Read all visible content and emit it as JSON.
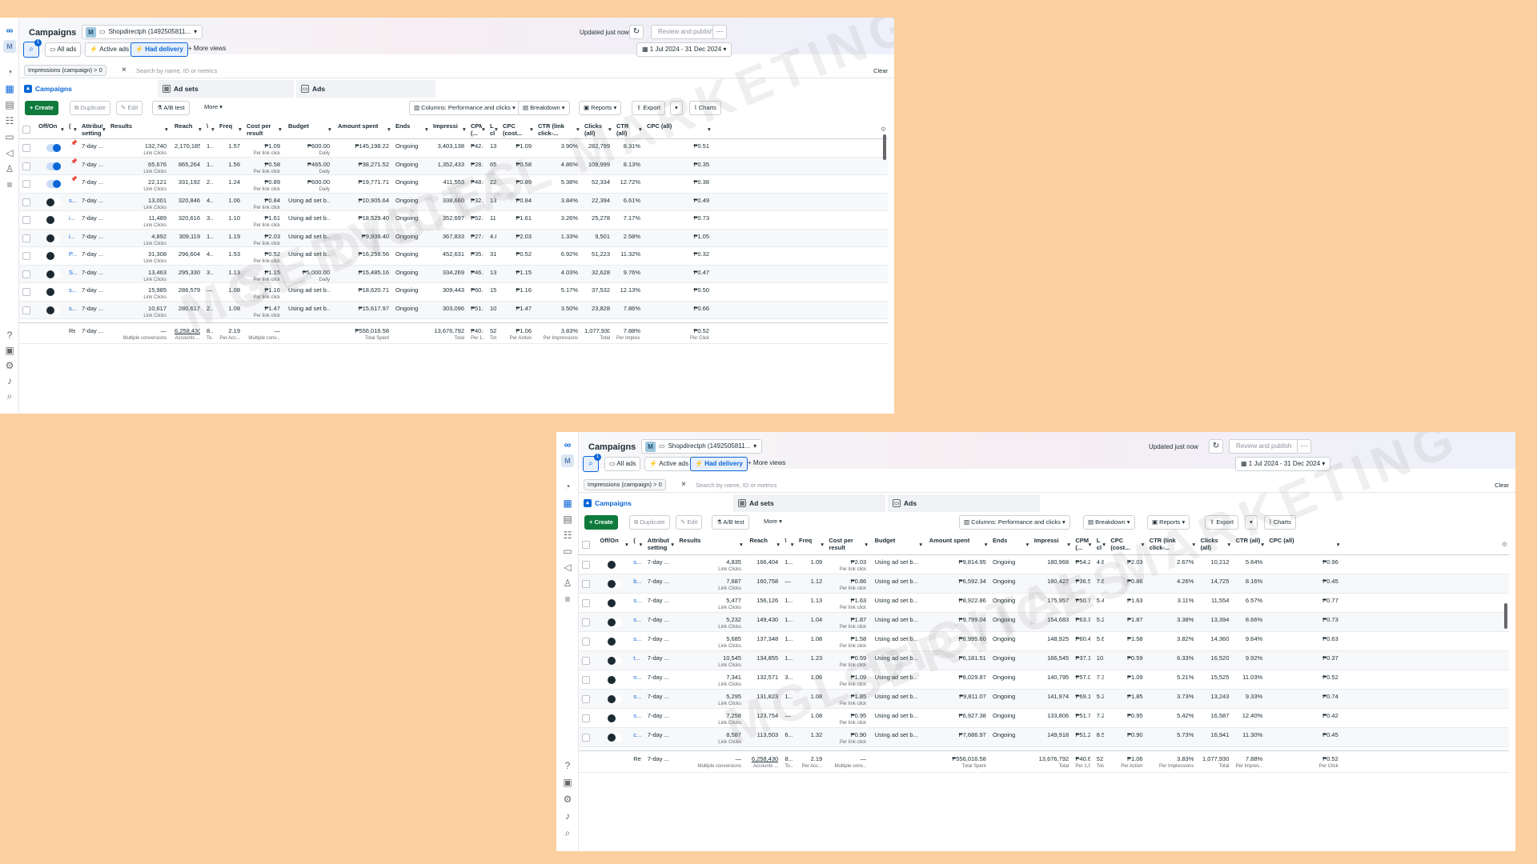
{
  "colors": {
    "page_bg": "#fbcfa0",
    "accent": "#0a66d8",
    "create_btn": "#0f7a3c"
  },
  "watermark": {
    "line1": "MGL DIGITAL MARKETING",
    "line2": "SERVICES"
  },
  "header": {
    "title": "Campaigns",
    "account_badge": "M",
    "account_name": "Shopdirectph (1492505811...",
    "updated": "Updated just now",
    "review_publish": "Review and publish",
    "more_icon": "···"
  },
  "views": {
    "search_count": "1",
    "all_ads": "All ads",
    "active_ads": "Active ads",
    "had_delivery": "Had delivery",
    "more_views": "More views",
    "date_range": "1 Jul 2024 - 31 Dec 2024"
  },
  "filter": {
    "chip": "Impressions (campaign) > 0",
    "search_placeholder": "Search by name, ID or metrics",
    "clear": "Clear"
  },
  "tabs": {
    "campaigns": "Campaigns",
    "ad_sets": "Ad sets",
    "ads": "Ads"
  },
  "toolbar": {
    "create": "Create",
    "duplicate": "Duplicate",
    "edit": "Edit",
    "ab_test": "A/B test",
    "more": "More",
    "columns": "Columns: Performance and clicks",
    "breakdown": "Breakdown",
    "reports": "Reports",
    "export": "Export",
    "charts": "Charts"
  },
  "columns": {
    "off_on": "Off/On",
    "c": "(",
    "attribution": "Attribut setting",
    "results": "Results",
    "reach": "Reach",
    "v": "\\",
    "freq": "Freq",
    "cost_per_result": "Cost per result",
    "budget": "Budget",
    "amount_spent": "Amount spent",
    "ends": "Ends",
    "impressions": "Impressi",
    "cpm": "CPM (...",
    "l": "L cl",
    "cpc_cost": "CPC (cost...",
    "ctr_link": "CTR (link click-...",
    "clicks_all": "Clicks (all)",
    "ctr_all": "CTR (all)",
    "cpc_all": "CPC (all)"
  },
  "table1": [
    {
      "name": "",
      "pin": "📌",
      "toggle": "on",
      "attr": "7-day ...",
      "results": "132,740",
      "reach": "2,170,185",
      "v": "1...",
      "freq": "1.57",
      "cpr": "₱1.09",
      "budget": "₱600.00",
      "budget_sub": "Daily",
      "spent": "₱145,198.22",
      "ends": "Ongoing",
      "impr": "3,403,138",
      "cpm": "₱42.67",
      "l": "13...",
      "cpc": "₱1.09",
      "ctrl": "3.90%",
      "clicks": "282,799",
      "ctra": "8.31%",
      "cpca": "₱0.51"
    },
    {
      "name": "",
      "pin": "📌",
      "toggle": "on",
      "attr": "7-day ...",
      "results": "65,676",
      "reach": "865,264",
      "v": "1...",
      "freq": "1.56",
      "cpr": "₱0.58",
      "budget": "₱465.00",
      "budget_sub": "Daily",
      "spent": "₱38,271.52",
      "ends": "Ongoing",
      "impr": "1,352,433",
      "cpm": "₱28.30",
      "l": "65...",
      "cpc": "₱0.58",
      "ctrl": "4.86%",
      "clicks": "109,999",
      "ctra": "8.13%",
      "cpca": "₱0.35"
    },
    {
      "name": "",
      "pin": "📌",
      "toggle": "on",
      "attr": "7-day ...",
      "results": "22,121",
      "reach": "331,192",
      "v": "2...",
      "freq": "1.24",
      "cpr": "₱0.89",
      "budget": "₱600.00",
      "budget_sub": "Daily",
      "spent": "₱19,771.71",
      "ends": "Ongoing",
      "impr": "411,553",
      "cpm": "₱48.05",
      "l": "22...",
      "cpc": "₱0.89",
      "ctrl": "5.38%",
      "clicks": "52,334",
      "ctra": "12.72%",
      "cpca": "₱0.38"
    },
    {
      "name": "s...",
      "pin": "",
      "toggle": "off",
      "attr": "7-day ...",
      "results": "13,001",
      "reach": "320,846",
      "v": "4...",
      "freq": "1.06",
      "cpr": "₱0.84",
      "budget": "Using ad set b...",
      "budget_sub": "",
      "spent": "₱10,905.64",
      "ends": "Ongoing",
      "impr": "338,660",
      "cpm": "₱32.20",
      "l": "13...",
      "cpc": "₱0.84",
      "ctrl": "3.84%",
      "clicks": "22,394",
      "ctra": "6.61%",
      "cpca": "₱0.49"
    },
    {
      "name": "i...",
      "pin": "",
      "toggle": "off",
      "attr": "7-day ...",
      "results": "11,489",
      "reach": "320,616",
      "v": "3...",
      "freq": "1.10",
      "cpr": "₱1.61",
      "budget": "Using ad set b...",
      "budget_sub": "",
      "spent": "₱18,529.40",
      "ends": "Ongoing",
      "impr": "352,697",
      "cpm": "₱52.54",
      "l": "11...",
      "cpc": "₱1.61",
      "ctrl": "3.26%",
      "clicks": "25,278",
      "ctra": "7.17%",
      "cpca": "₱0.73"
    },
    {
      "name": "i...",
      "pin": "",
      "toggle": "off",
      "attr": "7-day ...",
      "results": "4,892",
      "reach": "309,119",
      "v": "1...",
      "freq": "1.19",
      "cpr": "₱2.03",
      "budget": "Using ad set b...",
      "budget_sub": "",
      "spent": "₱9,939.40",
      "ends": "Ongoing",
      "impr": "367,833",
      "cpm": "₱27.02",
      "l": "4.8...",
      "cpc": "₱2.03",
      "ctrl": "1.33%",
      "clicks": "9,501",
      "ctra": "2.58%",
      "cpca": "₱1.05"
    },
    {
      "name": "P...",
      "pin": "",
      "toggle": "off",
      "attr": "7-day ...",
      "results": "31,308",
      "reach": "296,604",
      "v": "4...",
      "freq": "1.53",
      "cpr": "₱0.52",
      "budget": "Using ad set b...",
      "budget_sub": "",
      "spent": "₱16,259.56",
      "ends": "Ongoing",
      "impr": "452,631",
      "cpm": "₱35.92",
      "l": "31...",
      "cpc": "₱0.52",
      "ctrl": "6.92%",
      "clicks": "51,223",
      "ctra": "11.32%",
      "cpca": "₱0.32"
    },
    {
      "name": "S...",
      "pin": "",
      "toggle": "off",
      "attr": "7-day ...",
      "results": "13,463",
      "reach": "295,330",
      "v": "3...",
      "freq": "1.13",
      "cpr": "₱1.15",
      "budget": "₱5,000.00",
      "budget_sub": "Daily",
      "spent": "₱15,485.16",
      "ends": "Ongoing",
      "impr": "334,269",
      "cpm": "₱46.33",
      "l": "13...",
      "cpc": "₱1.15",
      "ctrl": "4.03%",
      "clicks": "32,628",
      "ctra": "9.76%",
      "cpca": "₱0.47"
    },
    {
      "name": "s...",
      "pin": "",
      "toggle": "off",
      "attr": "7-day ...",
      "results": "15,985",
      "reach": "286,579",
      "v": "—",
      "freq": "1.08",
      "cpr": "₱1.16",
      "budget": "Using ad set b...",
      "budget_sub": "",
      "spent": "₱18,620.71",
      "ends": "Ongoing",
      "impr": "309,443",
      "cpm": "₱60.17",
      "l": "15...",
      "cpc": "₱1.16",
      "ctrl": "5.17%",
      "clicks": "37,532",
      "ctra": "12.13%",
      "cpca": "₱0.50"
    },
    {
      "name": "s...",
      "pin": "",
      "toggle": "off",
      "attr": "7-day ...",
      "results": "10,617",
      "reach": "280,617",
      "v": "2...",
      "freq": "1.08",
      "cpr": "₱1.47",
      "budget": "Using ad set b...",
      "budget_sub": "",
      "spent": "₱15,617.97",
      "ends": "Ongoing",
      "impr": "303,096",
      "cpm": "₱51.53",
      "l": "10...",
      "cpc": "₱1.47",
      "ctrl": "3.50%",
      "clicks": "23,828",
      "ctra": "7.86%",
      "cpca": "₱0.66"
    }
  ],
  "table2": [
    {
      "name": "s...",
      "toggle": "off",
      "attr": "7-day ...",
      "results": "4,835",
      "reach": "166,404",
      "v": "1...",
      "freq": "1.09",
      "cpr": "₱2.03",
      "budget": "Using ad set b...",
      "spent": "₱9,814.95",
      "ends": "Ongoing",
      "impr": "180,968",
      "cpm": "₱54.24",
      "l": "4.8...",
      "cpc": "₱2.03",
      "ctrl": "2.67%",
      "clicks": "10,212",
      "ctra": "5.64%",
      "cpca": "₱0.96"
    },
    {
      "name": "b...",
      "toggle": "off",
      "attr": "7-day ...",
      "results": "7,687",
      "reach": "160,758",
      "v": "—",
      "freq": "1.12",
      "cpr": "₱0.86",
      "budget": "Using ad set b...",
      "spent": "₱6,592.34",
      "ends": "Ongoing",
      "impr": "180,427",
      "cpm": "₱36.54",
      "l": "7.6...",
      "cpc": "₱0.86",
      "ctrl": "4.26%",
      "clicks": "14,725",
      "ctra": "8.16%",
      "cpca": "₱0.45"
    },
    {
      "name": "s...",
      "toggle": "off",
      "attr": "7-day ...",
      "results": "5,477",
      "reach": "156,126",
      "v": "1...",
      "freq": "1.13",
      "cpr": "₱1.63",
      "budget": "Using ad set b...",
      "spent": "₱8,922.86",
      "ends": "Ongoing",
      "impr": "175,957",
      "cpm": "₱50.71",
      "l": "5.4...",
      "cpc": "₱1.63",
      "ctrl": "3.11%",
      "clicks": "11,554",
      "ctra": "6.57%",
      "cpca": "₱0.77"
    },
    {
      "name": "s...",
      "toggle": "off",
      "attr": "7-day ...",
      "results": "5,232",
      "reach": "149,430",
      "v": "1...",
      "freq": "1.04",
      "cpr": "₱1.87",
      "budget": "Using ad set b...",
      "spent": "₱9,799.04",
      "ends": "Ongoing",
      "impr": "154,683",
      "cpm": "₱63.35",
      "l": "5.2...",
      "cpc": "₱1.87",
      "ctrl": "3.38%",
      "clicks": "13,394",
      "ctra": "8.66%",
      "cpca": "₱0.73"
    },
    {
      "name": "s...",
      "toggle": "off",
      "attr": "7-day ...",
      "results": "5,685",
      "reach": "137,348",
      "v": "1...",
      "freq": "1.08",
      "cpr": "₱1.58",
      "budget": "Using ad set b...",
      "spent": "₱8,995.60",
      "ends": "Ongoing",
      "impr": "148,925",
      "cpm": "₱60.40",
      "l": "5.6...",
      "cpc": "₱1.58",
      "ctrl": "3.82%",
      "clicks": "14,360",
      "ctra": "9.64%",
      "cpca": "₱0.63"
    },
    {
      "name": "t...",
      "toggle": "off",
      "attr": "7-day ...",
      "results": "10,545",
      "reach": "134,855",
      "v": "1...",
      "freq": "1.23",
      "cpr": "₱0.59",
      "budget": "Using ad set b...",
      "spent": "₱6,181.51",
      "ends": "Ongoing",
      "impr": "166,545",
      "cpm": "₱37.12",
      "l": "10...",
      "cpc": "₱0.59",
      "ctrl": "6.33%",
      "clicks": "16,520",
      "ctra": "9.92%",
      "cpca": "₱0.37"
    },
    {
      "name": "n...",
      "toggle": "off",
      "attr": "7-day ...",
      "results": "7,341",
      "reach": "132,571",
      "v": "3...",
      "freq": "1.06",
      "cpr": "₱1.09",
      "budget": "Using ad set b...",
      "spent": "₱8,029.87",
      "ends": "Ongoing",
      "impr": "140,795",
      "cpm": "₱57.03",
      "l": "7.3...",
      "cpc": "₱1.09",
      "ctrl": "5.21%",
      "clicks": "15,525",
      "ctra": "11.03%",
      "cpca": "₱0.52"
    },
    {
      "name": "s...",
      "toggle": "off",
      "attr": "7-day ...",
      "results": "5,295",
      "reach": "131,823",
      "v": "1...",
      "freq": "1.08",
      "cpr": "₱1.85",
      "budget": "Using ad set b...",
      "spent": "₱9,811.07",
      "ends": "Ongoing",
      "impr": "141,974",
      "cpm": "₱69.10",
      "l": "5.2...",
      "cpc": "₱1.85",
      "ctrl": "3.73%",
      "clicks": "13,243",
      "ctra": "9.33%",
      "cpca": "₱0.74"
    },
    {
      "name": "s...",
      "toggle": "off",
      "attr": "7-day ...",
      "results": "7,258",
      "reach": "123,754",
      "v": "—",
      "freq": "1.08",
      "cpr": "₱0.95",
      "budget": "Using ad set b...",
      "spent": "₱6,927.38",
      "ends": "Ongoing",
      "impr": "133,806",
      "cpm": "₱51.77",
      "l": "7.2...",
      "cpc": "₱0.95",
      "ctrl": "5.42%",
      "clicks": "16,587",
      "ctra": "12.40%",
      "cpca": "₱0.42"
    },
    {
      "name": "c...",
      "toggle": "off",
      "attr": "7-day ...",
      "results": "8,587",
      "reach": "113,503",
      "v": "6...",
      "freq": "1.32",
      "cpr": "₱0.90",
      "budget": "Using ad set b...",
      "spent": "₱7,686.97",
      "ends": "Ongoing",
      "impr": "149,918",
      "cpm": "₱51.27",
      "l": "8.5...",
      "cpc": "₱0.90",
      "ctrl": "5.73%",
      "clicks": "16,941",
      "ctra": "11.30%",
      "cpca": "₱0.45"
    }
  ],
  "totals": {
    "name": "Res",
    "attr": "7-day ...",
    "results": "—",
    "results_sub": "Multiple conversions",
    "reach": "6,258,430",
    "reach_sub": "Accounts ...",
    "v": "8...",
    "v_sub": "To...",
    "freq": "2.19",
    "freq_sub": "Per Acc...",
    "cpr": "—",
    "cpr_sub": "Multiple conv...",
    "spent": "₱556,016.58",
    "spent_sub": "Total Spent",
    "impr": "13,676,792",
    "impr_sub": "Total",
    "cpm": "₱40.65",
    "cpm_sub": "Per 1,0...",
    "l": "52...",
    "l_sub": "Total",
    "cpc": "₱1.06",
    "cpc_sub": "Per Action",
    "ctrl": "3.83%",
    "ctrl_sub": "Per Impressions",
    "clicks": "1,077,930",
    "clicks_sub": "Total",
    "ctra": "7.88%",
    "ctra_sub": "Per Impres...",
    "cpca": "₱0.52",
    "cpca_sub": "Per Click"
  },
  "row_subs": {
    "link_clicks": "Link Clicks",
    "per_link_click": "Per link click"
  }
}
